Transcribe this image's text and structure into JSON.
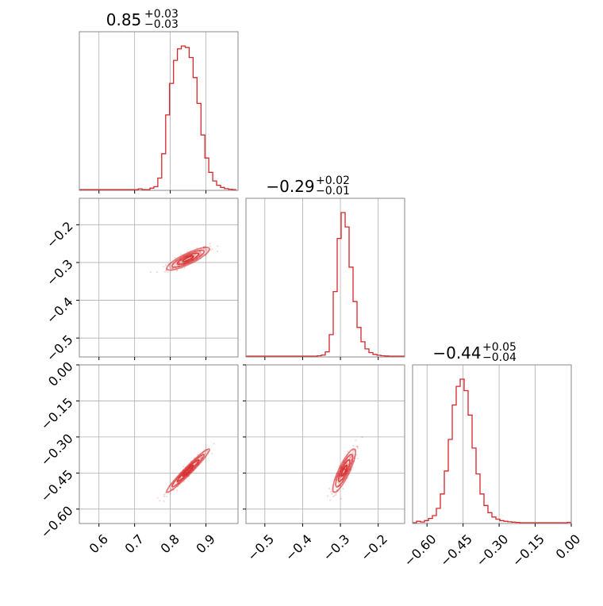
{
  "chart_data": {
    "type": "corner",
    "parameters": 3,
    "color": "#d62728",
    "grid": true,
    "titles": [
      {
        "value": "0.85",
        "plus": "+0.03",
        "minus": "−0.03"
      },
      {
        "value": "−0.29",
        "plus": "+0.02",
        "minus": "−0.01"
      },
      {
        "value": "−0.44",
        "plus": "+0.05",
        "minus": "−0.04"
      }
    ],
    "axes": [
      {
        "range": [
          0.545,
          0.99
        ],
        "ticks": [
          0.6,
          0.7,
          0.8,
          0.9
        ],
        "tick_labels": [
          "0.6",
          "0.7",
          "0.8",
          "0.9"
        ]
      },
      {
        "range": [
          -0.55,
          -0.13
        ],
        "ticks": [
          -0.5,
          -0.4,
          -0.3,
          -0.2
        ],
        "tick_labels": [
          "−0.5",
          "−0.4",
          "−0.3",
          "−0.2"
        ],
        "row_tick_labels": [
          "−0.2",
          "−0.3",
          "−0.4",
          "−0.5"
        ]
      },
      {
        "range": [
          -0.66,
          0.0
        ],
        "ticks": [
          -0.6,
          -0.45,
          -0.3,
          -0.15,
          0.0
        ],
        "tick_labels": [
          "−0.60",
          "−0.45",
          "−0.30",
          "−0.15",
          "0.00"
        ]
      }
    ],
    "hist": [
      {
        "x": [
          0.545,
          0.556,
          0.567,
          0.578,
          0.589,
          0.6,
          0.611,
          0.622,
          0.633,
          0.644,
          0.655,
          0.666,
          0.677,
          0.688,
          0.699,
          0.71,
          0.721,
          0.732,
          0.743,
          0.754,
          0.765,
          0.776,
          0.787,
          0.798,
          0.809,
          0.82,
          0.831,
          0.842,
          0.853,
          0.864,
          0.875,
          0.886,
          0.897,
          0.908,
          0.919,
          0.93,
          0.941,
          0.952,
          0.963,
          0.974,
          0.985
        ],
        "y": [
          0,
          0,
          0,
          0,
          0,
          0,
          0,
          0,
          0,
          0,
          0,
          0,
          0,
          0,
          0,
          0.005,
          0,
          0,
          0.01,
          0.02,
          0.08,
          0.25,
          0.52,
          0.74,
          0.9,
          0.98,
          1.0,
          0.99,
          0.92,
          0.78,
          0.6,
          0.38,
          0.22,
          0.12,
          0.06,
          0.03,
          0.015,
          0.006,
          0.002,
          0,
          0
        ]
      },
      {
        "x": [
          -0.55,
          -0.5395,
          -0.529,
          -0.5185,
          -0.508,
          -0.4975,
          -0.487,
          -0.4765,
          -0.466,
          -0.4555,
          -0.445,
          -0.4345,
          -0.424,
          -0.4135,
          -0.403,
          -0.3925,
          -0.382,
          -0.3715,
          -0.361,
          -0.3505,
          -0.34,
          -0.3295,
          -0.319,
          -0.3085,
          -0.298,
          -0.2875,
          -0.277,
          -0.2665,
          -0.256,
          -0.2455,
          -0.235,
          -0.2245,
          -0.214,
          -0.2035,
          -0.193,
          -0.1825,
          -0.172,
          -0.1615,
          -0.151,
          -0.1405,
          -0.13
        ],
        "y": [
          0,
          0,
          0,
          0,
          0,
          0,
          0,
          0,
          0,
          0,
          0,
          0,
          0,
          0,
          0,
          0,
          0,
          0,
          0.003,
          0.008,
          0.03,
          0.15,
          0.45,
          0.82,
          1.0,
          0.9,
          0.62,
          0.38,
          0.2,
          0.1,
          0.05,
          0.025,
          0.012,
          0.006,
          0.003,
          0.001,
          0,
          0,
          0,
          0,
          0
        ]
      },
      {
        "x": [
          -0.66,
          -0.6435,
          -0.627,
          -0.6105,
          -0.594,
          -0.5775,
          -0.561,
          -0.5445,
          -0.528,
          -0.5115,
          -0.495,
          -0.4785,
          -0.462,
          -0.4455,
          -0.429,
          -0.4125,
          -0.396,
          -0.3795,
          -0.363,
          -0.3465,
          -0.33,
          -0.3135,
          -0.297,
          -0.2805,
          -0.264,
          -0.2475,
          -0.231,
          -0.2145,
          -0.198,
          -0.1815,
          -0.165,
          -0.1485,
          -0.132,
          -0.1155,
          -0.099,
          -0.0825,
          -0.066,
          -0.0495,
          -0.033,
          -0.0165,
          0.0
        ],
        "y": [
          0,
          0.01,
          0.005,
          0.015,
          0.03,
          0.05,
          0.1,
          0.2,
          0.36,
          0.58,
          0.82,
          0.95,
          1.0,
          0.92,
          0.75,
          0.52,
          0.34,
          0.2,
          0.12,
          0.07,
          0.04,
          0.025,
          0.015,
          0.01,
          0.006,
          0.004,
          0.002,
          0,
          0,
          0,
          0,
          0,
          0,
          0,
          0,
          0,
          0,
          0,
          0,
          0.003,
          0
        ]
      }
    ],
    "correlations": [
      {
        "x_param": 0,
        "y_param": 1,
        "mean": [
          0.85,
          -0.29
        ],
        "sd": [
          0.03,
          0.015
        ],
        "rho": 0.85
      },
      {
        "x_param": 0,
        "y_param": 2,
        "mean": [
          0.85,
          -0.44
        ],
        "sd": [
          0.03,
          0.045
        ],
        "rho": 0.97
      },
      {
        "x_param": 1,
        "y_param": 2,
        "mean": [
          -0.29,
          -0.44
        ],
        "sd": [
          0.015,
          0.045
        ],
        "rho": 0.85
      }
    ]
  }
}
